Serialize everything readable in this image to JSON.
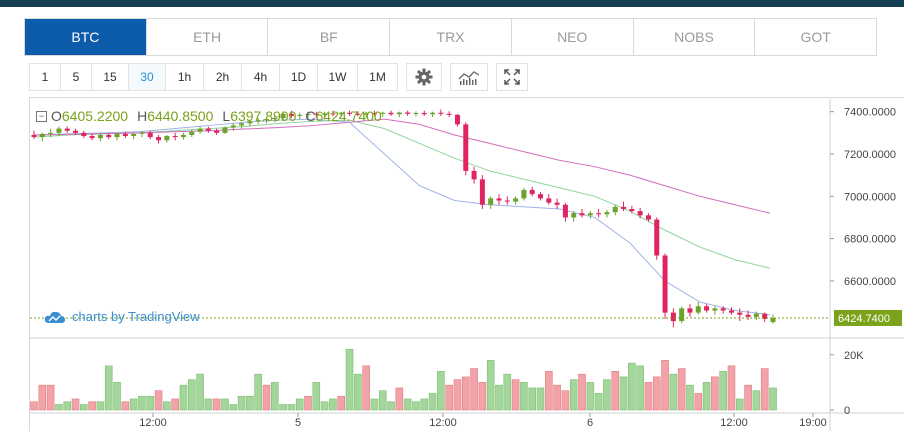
{
  "pair_tabs": [
    "BTC",
    "ETH",
    "BF",
    "TRX",
    "NEO",
    "NOBS",
    "GOT"
  ],
  "active_pair": "BTC",
  "intervals": [
    "1",
    "5",
    "15",
    "30",
    "1h",
    "2h",
    "4h",
    "1D",
    "1W",
    "1M"
  ],
  "active_interval": "30",
  "toolbar_icons": [
    "gear-icon",
    "indicators-icon",
    "fullscreen-icon"
  ],
  "ohlc": {
    "o_label": "O",
    "o": "6405.2200",
    "h_label": "H",
    "h": "6440.8500",
    "l_label": "L",
    "l": "6397.8900",
    "c_label": "C",
    "c": "6424.7400",
    "toggle": "−"
  },
  "watermark": "charts by TradingView",
  "colors": {
    "up": "#6ba32c",
    "down": "#e0245e",
    "tab_active": "#0d5cab",
    "ma1": "#9fb3e8",
    "ma2": "#8fd49b",
    "ma3": "#d36dbf",
    "price_line": "#7aa21a"
  },
  "chart_data": {
    "type": "candlestick",
    "price_axis": {
      "ticks": [
        "7400.0000",
        "7200.0000",
        "7000.0000",
        "6800.0000",
        "6600.0000"
      ],
      "range": [
        6330,
        7460
      ]
    },
    "last_price_label": "6424.7400",
    "volume_axis": {
      "ticks": [
        "20K",
        "0"
      ],
      "range": [
        0,
        25000
      ]
    },
    "time_axis": {
      "labels": [
        "12:00",
        "5",
        "12:00",
        "6",
        "12:00",
        "19:00"
      ]
    },
    "candles": [
      [
        7290,
        7310,
        7270,
        7280
      ],
      [
        7280,
        7300,
        7260,
        7295
      ],
      [
        7295,
        7320,
        7280,
        7300
      ],
      [
        7300,
        7330,
        7285,
        7320
      ],
      [
        7320,
        7330,
        7300,
        7310
      ],
      [
        7310,
        7320,
        7290,
        7300
      ],
      [
        7300,
        7310,
        7275,
        7285
      ],
      [
        7285,
        7295,
        7265,
        7275
      ],
      [
        7275,
        7300,
        7260,
        7290
      ],
      [
        7290,
        7300,
        7270,
        7280
      ],
      [
        7280,
        7300,
        7265,
        7295
      ],
      [
        7295,
        7305,
        7275,
        7285
      ],
      [
        7285,
        7300,
        7270,
        7295
      ],
      [
        7295,
        7310,
        7280,
        7300
      ],
      [
        7300,
        7310,
        7270,
        7280
      ],
      [
        7280,
        7290,
        7250,
        7265
      ],
      [
        7265,
        7290,
        7255,
        7285
      ],
      [
        7285,
        7300,
        7265,
        7280
      ],
      [
        7280,
        7300,
        7268,
        7290
      ],
      [
        7290,
        7315,
        7280,
        7305
      ],
      [
        7305,
        7330,
        7295,
        7320
      ],
      [
        7320,
        7330,
        7300,
        7310
      ],
      [
        7310,
        7320,
        7290,
        7300
      ],
      [
        7300,
        7330,
        7295,
        7325
      ],
      [
        7325,
        7345,
        7310,
        7335
      ],
      [
        7335,
        7350,
        7320,
        7345
      ],
      [
        7345,
        7360,
        7330,
        7355
      ],
      [
        7355,
        7370,
        7340,
        7360
      ],
      [
        7360,
        7375,
        7345,
        7365
      ],
      [
        7365,
        7380,
        7350,
        7370
      ],
      [
        7370,
        7400,
        7355,
        7390
      ],
      [
        7390,
        7405,
        7370,
        7380
      ],
      [
        7380,
        7395,
        7365,
        7385
      ],
      [
        7385,
        7400,
        7370,
        7390
      ],
      [
        7390,
        7400,
        7372,
        7385
      ],
      [
        7385,
        7400,
        7370,
        7392
      ],
      [
        7392,
        7405,
        7378,
        7388
      ],
      [
        7388,
        7400,
        7375,
        7395
      ],
      [
        7395,
        7405,
        7380,
        7390
      ],
      [
        7390,
        7402,
        7378,
        7386
      ],
      [
        7386,
        7400,
        7372,
        7393
      ],
      [
        7393,
        7405,
        7380,
        7390
      ],
      [
        7390,
        7400,
        7376,
        7395
      ],
      [
        7395,
        7405,
        7380,
        7388
      ],
      [
        7388,
        7400,
        7374,
        7396
      ],
      [
        7396,
        7405,
        7380,
        7390
      ],
      [
        7390,
        7402,
        7378,
        7394
      ],
      [
        7394,
        7405,
        7380,
        7388
      ],
      [
        7388,
        7400,
        7375,
        7395
      ],
      [
        7395,
        7410,
        7380,
        7390
      ],
      [
        7390,
        7402,
        7375,
        7385
      ],
      [
        7385,
        7390,
        7330,
        7340
      ],
      [
        7340,
        7350,
        7100,
        7120
      ],
      [
        7120,
        7140,
        7060,
        7080
      ],
      [
        7080,
        7100,
        6940,
        6960
      ],
      [
        6960,
        7000,
        6940,
        6990
      ],
      [
        6990,
        7010,
        6960,
        6980
      ],
      [
        6980,
        7000,
        6960,
        6975
      ],
      [
        6975,
        7000,
        6960,
        6990
      ],
      [
        6990,
        7040,
        6980,
        7030
      ],
      [
        7030,
        7045,
        7000,
        7010
      ],
      [
        7010,
        7020,
        6980,
        6990
      ],
      [
        6990,
        7010,
        6960,
        6970
      ],
      [
        6970,
        6990,
        6940,
        6960
      ],
      [
        6960,
        6970,
        6880,
        6900
      ],
      [
        6900,
        6930,
        6880,
        6920
      ],
      [
        6920,
        6940,
        6900,
        6910
      ],
      [
        6910,
        6930,
        6895,
        6920
      ],
      [
        6920,
        6940,
        6900,
        6915
      ],
      [
        6915,
        6935,
        6900,
        6925
      ],
      [
        6925,
        6960,
        6910,
        6950
      ],
      [
        6950,
        6975,
        6930,
        6940
      ],
      [
        6940,
        6955,
        6920,
        6930
      ],
      [
        6930,
        6945,
        6895,
        6910
      ],
      [
        6910,
        6920,
        6880,
        6890
      ],
      [
        6890,
        6900,
        6700,
        6720
      ],
      [
        6720,
        6730,
        6420,
        6450
      ],
      [
        6450,
        6470,
        6380,
        6410
      ],
      [
        6410,
        6480,
        6400,
        6470
      ],
      [
        6470,
        6490,
        6430,
        6450
      ],
      [
        6450,
        6500,
        6440,
        6480
      ],
      [
        6480,
        6490,
        6450,
        6460
      ],
      [
        6460,
        6480,
        6440,
        6470
      ],
      [
        6470,
        6480,
        6445,
        6460
      ],
      [
        6460,
        6475,
        6440,
        6450
      ],
      [
        6450,
        6470,
        6410,
        6440
      ],
      [
        6440,
        6460,
        6415,
        6430
      ],
      [
        6430,
        6455,
        6415,
        6445
      ],
      [
        6445,
        6450,
        6405,
        6420
      ],
      [
        6405,
        6441,
        6398,
        6425
      ]
    ],
    "volume": [
      3,
      9,
      9,
      2,
      3,
      4,
      2,
      3,
      3,
      16,
      10,
      3,
      4,
      5,
      5,
      7,
      3,
      4,
      9,
      11,
      13,
      4,
      4,
      4,
      2,
      5,
      5,
      13,
      9,
      10,
      2,
      2,
      4,
      5,
      10,
      3,
      4,
      5,
      22,
      13,
      16,
      4,
      7,
      3,
      8,
      4,
      3,
      4,
      6,
      14,
      9,
      11,
      12,
      15,
      10,
      18,
      9,
      13,
      11,
      10,
      8,
      8,
      14,
      9,
      7,
      11,
      13,
      10,
      6,
      11,
      14,
      12,
      17,
      16,
      10,
      12,
      18,
      13,
      15,
      9,
      6,
      10,
      12,
      14,
      16,
      4,
      9,
      7,
      15,
      8
    ],
    "volume_colors_down": [
      0,
      1,
      2,
      5,
      7,
      11,
      15,
      17,
      22,
      28,
      33,
      37,
      40,
      44,
      50,
      51,
      52,
      53,
      54,
      58,
      62,
      63,
      64,
      66,
      70,
      74,
      75,
      76,
      78,
      80,
      82,
      84,
      86,
      88
    ],
    "ma_series": [
      {
        "values": [
          7290,
          7295,
          7300,
          7305,
          7320,
          7335,
          7350,
          7360,
          7365,
          7350,
          7200,
          7050,
          6980,
          6960,
          6950,
          6940,
          6900,
          6780,
          6600,
          6500,
          6460,
          6440
        ]
      },
      {
        "values": [
          7280,
          7290,
          7295,
          7300,
          7310,
          7320,
          7330,
          7345,
          7355,
          7360,
          7320,
          7250,
          7180,
          7120,
          7080,
          7040,
          7000,
          6930,
          6840,
          6760,
          6700,
          6660
        ]
      },
      {
        "values": [
          7290,
          7293,
          7296,
          7300,
          7305,
          7310,
          7318,
          7325,
          7335,
          7350,
          7365,
          7340,
          7290,
          7250,
          7210,
          7170,
          7140,
          7100,
          7050,
          7000,
          6960,
          6920
        ]
      }
    ]
  }
}
